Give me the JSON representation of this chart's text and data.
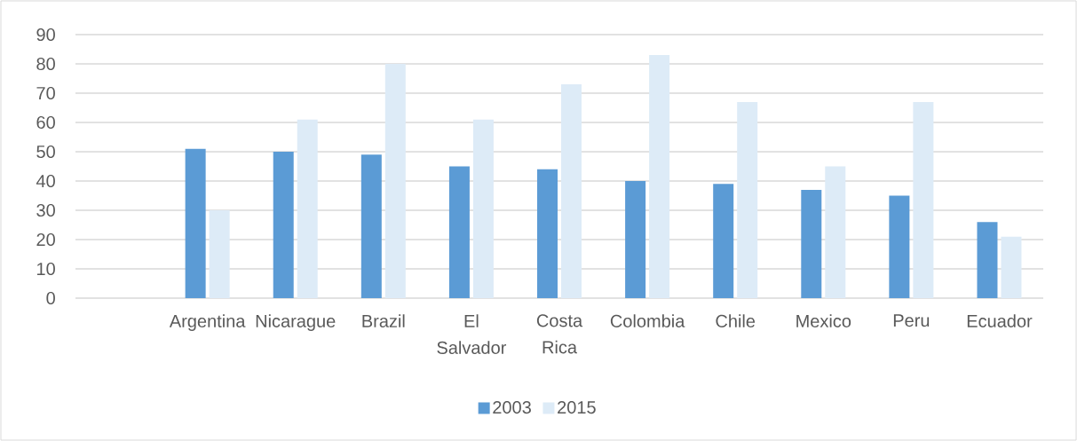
{
  "chart_data": {
    "type": "bar",
    "categories": [
      null,
      "Argentina",
      "Nicarague",
      "Brazil",
      "El Salvador",
      "Costa Rica",
      "Colombia",
      "Chile",
      "Mexico",
      "Peru",
      "Ecuador"
    ],
    "series": [
      {
        "name": "2003",
        "color": "#5b9bd5",
        "values": [
          null,
          51,
          50,
          49,
          45,
          44,
          40,
          39,
          37,
          35,
          26
        ]
      },
      {
        "name": "2015",
        "color": "#ddebf7",
        "values": [
          null,
          30,
          61,
          80,
          61,
          73,
          83,
          67,
          45,
          67,
          21
        ]
      }
    ],
    "ylim": [
      0,
      90
    ],
    "yticks": [
      0,
      10,
      20,
      30,
      40,
      50,
      60,
      70,
      80,
      90
    ],
    "grid": "y",
    "legend": "bottom"
  }
}
